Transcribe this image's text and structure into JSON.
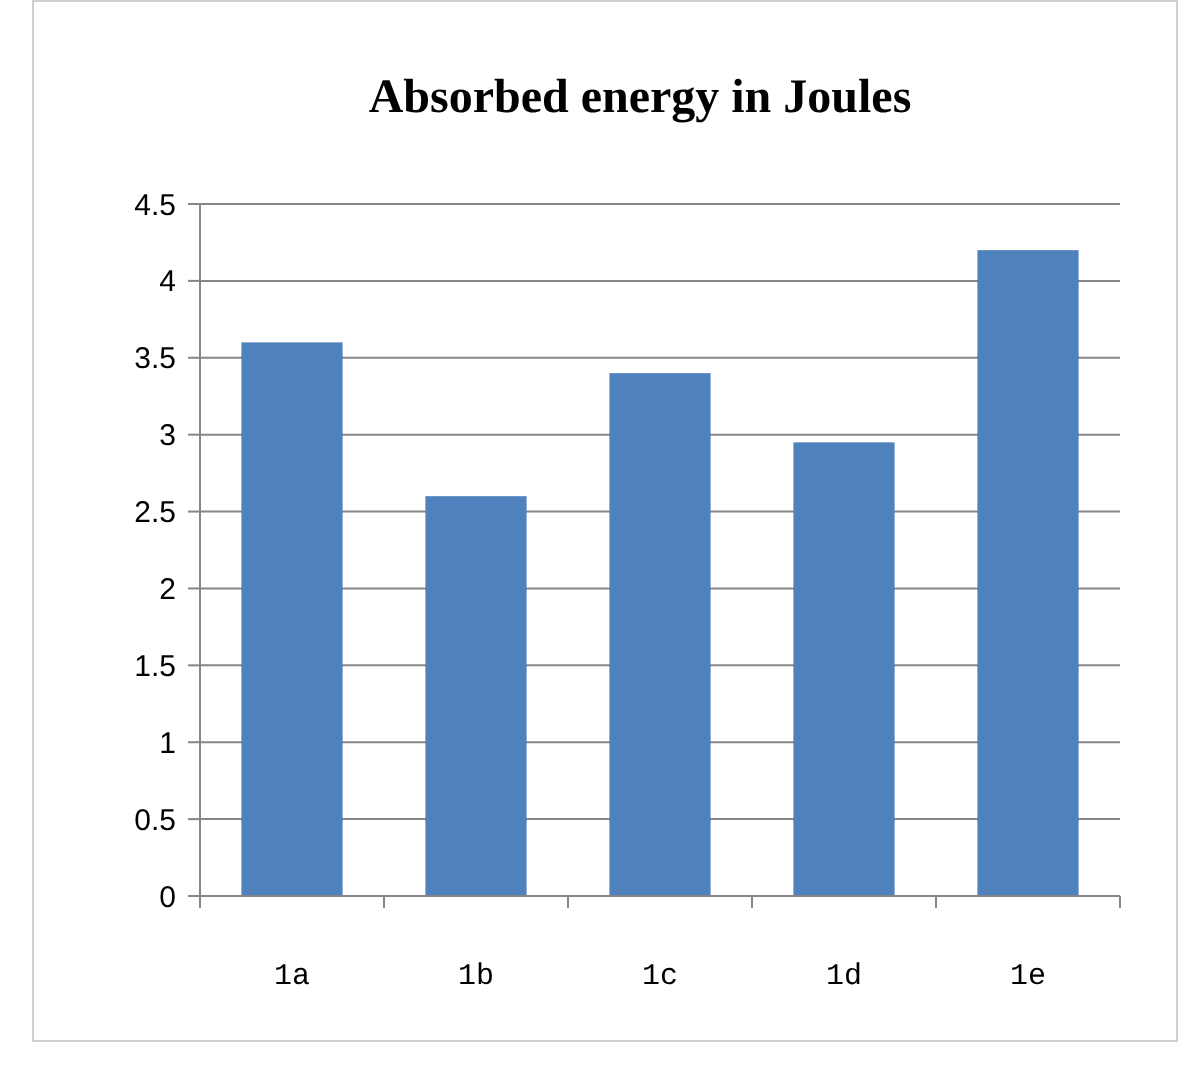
{
  "chart_data": {
    "type": "bar",
    "title": "Absorbed energy in Joules",
    "categories": [
      "1a",
      "1b",
      "1c",
      "1d",
      "1e"
    ],
    "values": [
      3.6,
      2.6,
      3.4,
      2.95,
      4.2
    ],
    "color": "#4f81bd",
    "ylim": [
      0,
      4.5
    ],
    "yticks": [
      0,
      0.5,
      1,
      1.5,
      2,
      2.5,
      3,
      3.5,
      4,
      4.5
    ],
    "grid": "y"
  }
}
